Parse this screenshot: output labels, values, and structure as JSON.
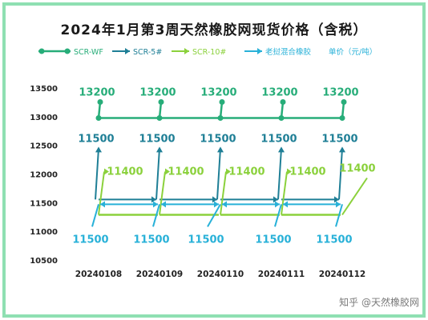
{
  "chart_data": {
    "type": "line",
    "title": "2024年1月第3周天然橡胶网现货价格（含税）",
    "categories": [
      "20240108",
      "20240109",
      "20240110",
      "20240111",
      "20240112"
    ],
    "series": [
      {
        "name": "SCR-WF",
        "color": "#27ad79",
        "values": [
          13200,
          13200,
          13200,
          13200,
          13200
        ],
        "labels": [
          "13200",
          "13200",
          "13200",
          "13200",
          "13200"
        ]
      },
      {
        "name": "SCR-5#",
        "color": "#1f7f96",
        "values": [
          11500,
          11500,
          11500,
          11500,
          11500
        ],
        "labels": [
          "11500",
          "11500",
          "11500",
          "11500",
          "11500"
        ]
      },
      {
        "name": "SCR-10#",
        "color": "#8bd13c",
        "values": [
          11400,
          11400,
          11400,
          11400,
          11400
        ],
        "labels": [
          "11400",
          "11400",
          "11400",
          "11400",
          "11400"
        ]
      },
      {
        "name": "老挝混合橡胶",
        "color": "#28b1d8",
        "values": [
          11500,
          11500,
          11500,
          11500,
          11500
        ],
        "labels": [
          "11500",
          "11500",
          "11500",
          "11500",
          "11500"
        ]
      }
    ],
    "unit_label": "单价（元/吨）",
    "y_ticks": [
      "13500",
      "13000",
      "12500",
      "12000",
      "11500",
      "11000",
      "10500"
    ],
    "ylim": [
      10500,
      13500
    ],
    "grid": false,
    "legend_position": "top"
  },
  "watermark": "知乎 @天然橡胶网"
}
